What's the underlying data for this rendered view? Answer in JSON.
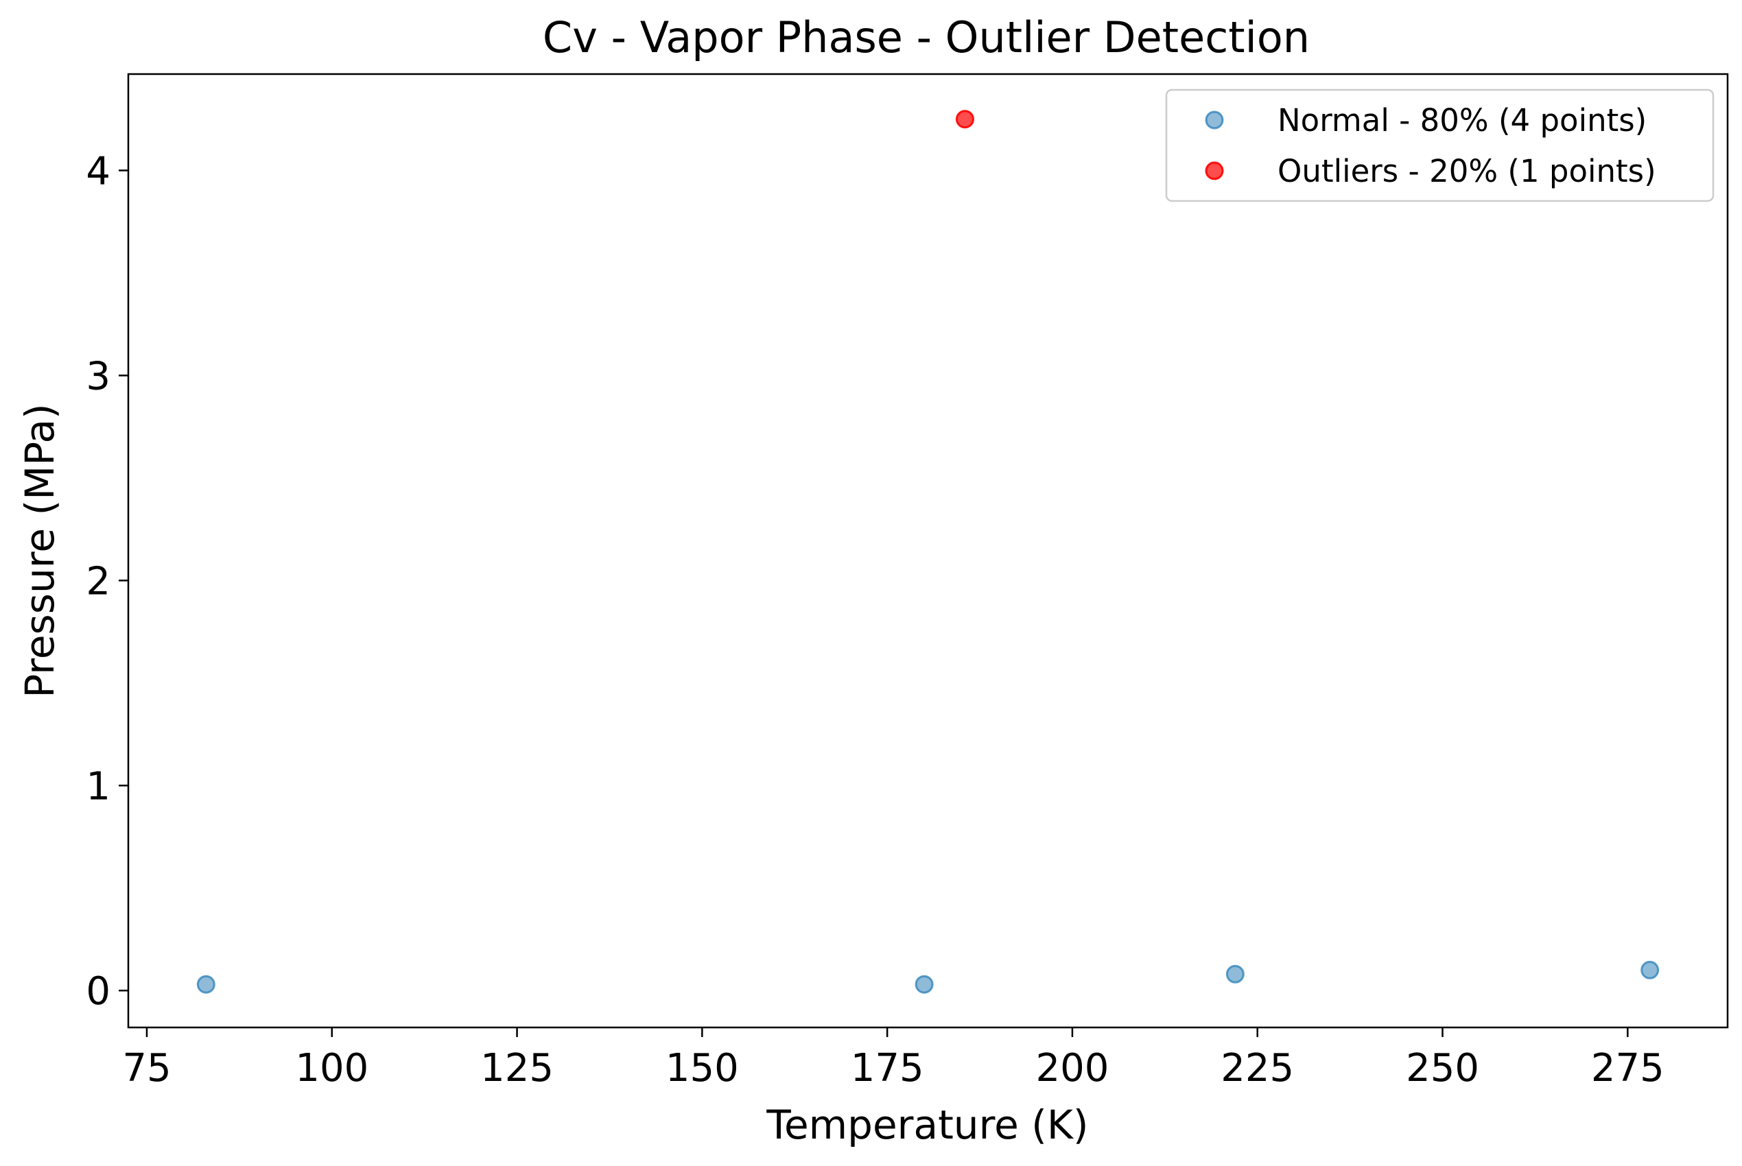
{
  "chart_data": {
    "type": "scatter",
    "title": "Cv - Vapor Phase - Outlier Detection",
    "xlabel": "Temperature (K)",
    "ylabel": "Pressure (MPa)",
    "xlim": [
      72.5,
      288.5
    ],
    "ylim": [
      -0.18,
      4.47
    ],
    "xticks": [
      75,
      100,
      125,
      150,
      175,
      200,
      225,
      250,
      275
    ],
    "yticks": [
      0,
      1,
      2,
      3,
      4
    ],
    "grid": false,
    "legend_position": "upper right",
    "series": [
      {
        "name": "Normal - 80% (4 points)",
        "color": "#1f77b4",
        "opacity": 0.5,
        "points": [
          {
            "x": 83,
            "y": 0.03
          },
          {
            "x": 180,
            "y": 0.03
          },
          {
            "x": 222,
            "y": 0.08
          },
          {
            "x": 278,
            "y": 0.1
          }
        ]
      },
      {
        "name": "Outliers - 20% (1 points)",
        "color": "#ff0000",
        "opacity": 0.7,
        "points": [
          {
            "x": 185.5,
            "y": 4.25
          }
        ]
      }
    ]
  }
}
